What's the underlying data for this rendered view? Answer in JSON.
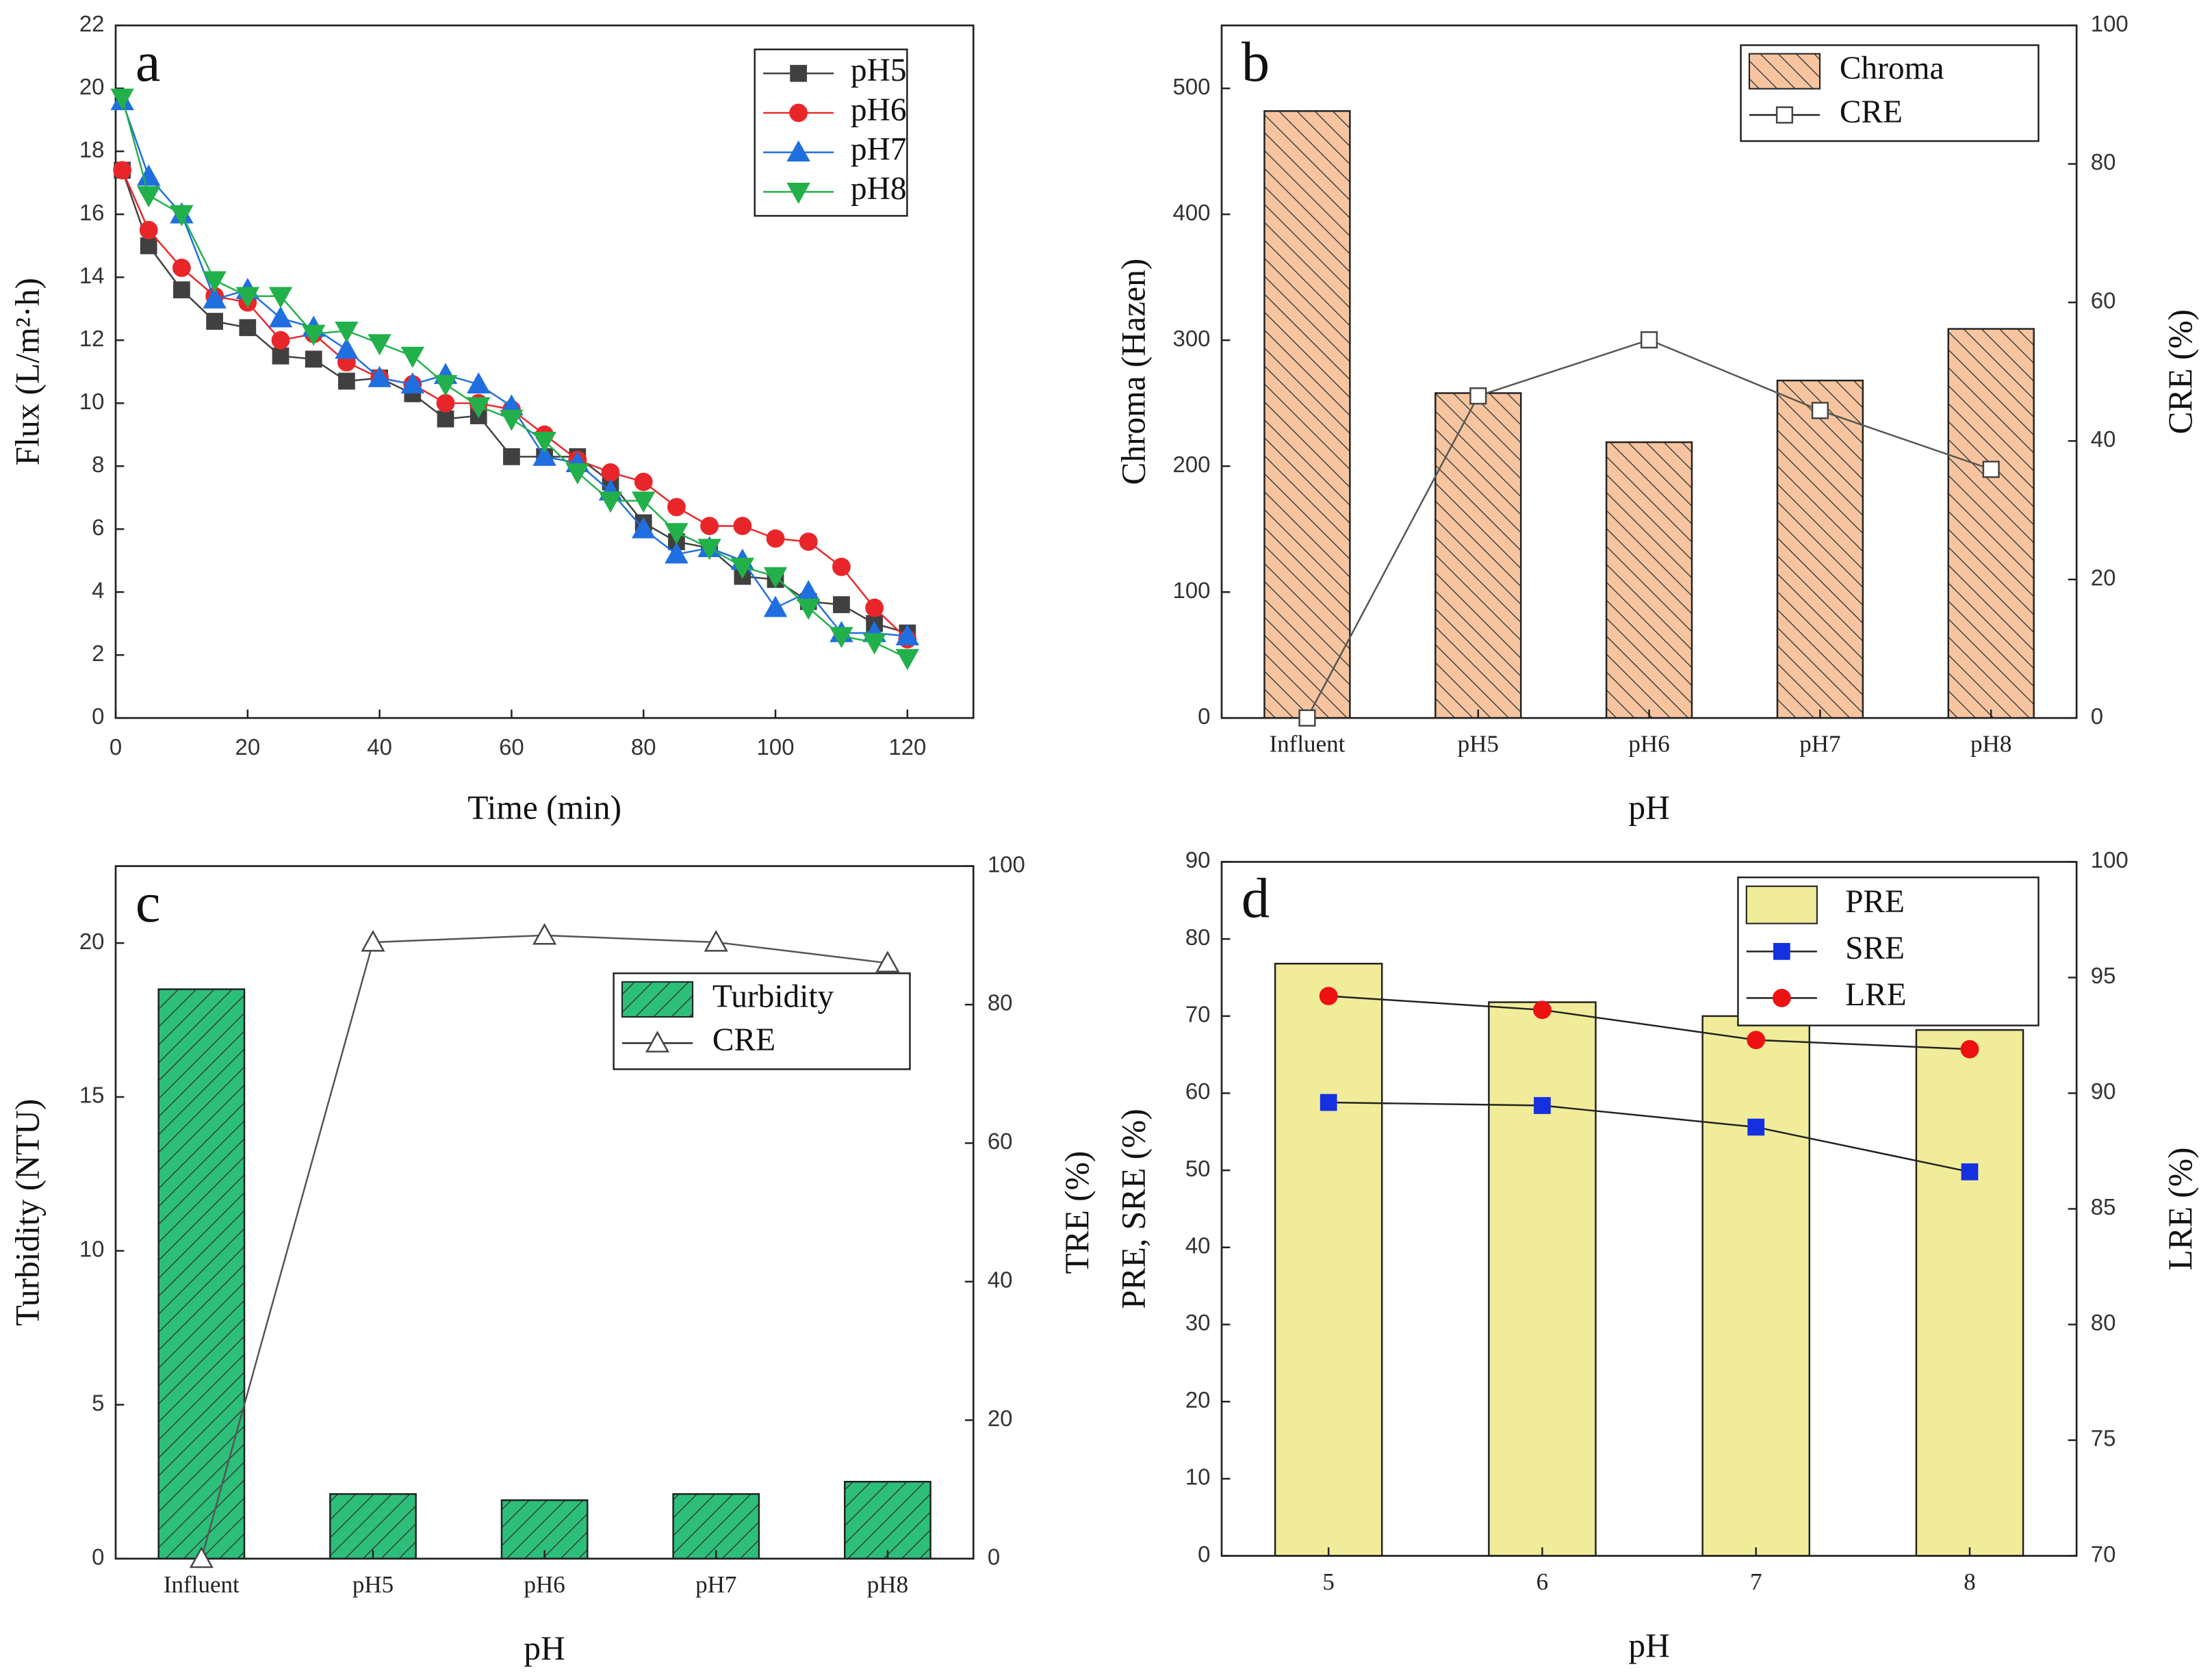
{
  "chart_data": [
    {
      "type": "line",
      "label": "a",
      "xlabel": "Time (min)",
      "ylabel": "Flux (L/m²·h)",
      "x": [
        1,
        5,
        10,
        15,
        20,
        25,
        30,
        35,
        40,
        45,
        50,
        55,
        60,
        65,
        70,
        75,
        80,
        85,
        90,
        95,
        100,
        105,
        110,
        115,
        120
      ],
      "xlim": [
        0,
        130
      ],
      "xticks": [
        0,
        20,
        40,
        60,
        80,
        100,
        120
      ],
      "ylim": [
        0,
        22
      ],
      "yticks": [
        0,
        2,
        4,
        6,
        8,
        10,
        12,
        14,
        16,
        18,
        20,
        22
      ],
      "legend": "upper right",
      "series": [
        {
          "name": "pH5",
          "color": "#404040",
          "marker": "square",
          "values": [
            17.4,
            15.0,
            13.6,
            12.6,
            12.4,
            11.5,
            11.4,
            10.7,
            10.8,
            10.3,
            9.5,
            9.6,
            8.3,
            8.3,
            8.3,
            7.5,
            6.2,
            5.6,
            5.4,
            4.5,
            4.4,
            3.7,
            3.6,
            3.0,
            2.7
          ]
        },
        {
          "name": "pH6",
          "color": "#e8262a",
          "marker": "circle",
          "values": [
            17.4,
            15.5,
            14.3,
            13.4,
            13.2,
            12.0,
            12.2,
            11.3,
            10.8,
            10.6,
            10.0,
            10.0,
            9.8,
            9.0,
            8.2,
            7.8,
            7.5,
            6.7,
            6.1,
            6.1,
            5.7,
            5.6,
            4.8,
            3.5,
            2.5
          ]
        },
        {
          "name": "pH7",
          "color": "#1f6fe0",
          "marker": "triangle-up",
          "values": [
            19.6,
            17.2,
            16.0,
            13.3,
            13.6,
            12.7,
            12.4,
            11.7,
            10.8,
            10.6,
            10.9,
            10.6,
            9.9,
            8.3,
            8.1,
            7.2,
            6.0,
            5.2,
            5.4,
            5.0,
            3.5,
            4.0,
            2.7,
            2.7,
            2.6
          ]
        },
        {
          "name": "pH8",
          "color": "#22b04a",
          "marker": "triangle-down",
          "values": [
            19.7,
            16.6,
            16.0,
            13.9,
            13.4,
            13.4,
            12.2,
            12.3,
            11.9,
            11.5,
            10.6,
            9.9,
            9.5,
            8.8,
            7.8,
            6.9,
            6.9,
            5.9,
            5.4,
            4.8,
            4.5,
            3.5,
            2.6,
            2.4,
            1.9
          ]
        }
      ]
    },
    {
      "type": "bar_line",
      "label": "b",
      "xlabel": "pH",
      "ylabel": "Chroma (Hazen)",
      "y2label": "CRE (%)",
      "categories": [
        "Influent",
        "pH5",
        "pH6",
        "pH7",
        "pH8"
      ],
      "ylim": [
        0,
        550
      ],
      "yticks": [
        0,
        100,
        200,
        300,
        400,
        500
      ],
      "y2lim": [
        0,
        100
      ],
      "y2ticks": [
        0,
        20,
        40,
        60,
        80,
        100
      ],
      "legend": "upper right",
      "series": [
        {
          "name": "Chroma",
          "type": "bar",
          "color": "#f6c59f",
          "hatch": "backslash",
          "values": [
            482,
            258,
            219,
            268,
            309
          ]
        },
        {
          "name": "CRE",
          "type": "line",
          "axis": "y2",
          "color": "#555555",
          "marker": "square",
          "hollow": true,
          "values": [
            0,
            46.5,
            54.6,
            44.4,
            35.9
          ]
        }
      ]
    },
    {
      "type": "bar_line",
      "label": "c",
      "xlabel": "pH",
      "ylabel": "Turbidity (NTU)",
      "y2label": "TRE (%)",
      "categories": [
        "Influent",
        "pH5",
        "pH6",
        "pH7",
        "pH8"
      ],
      "ylim": [
        0,
        22.5
      ],
      "yticks": [
        0,
        5,
        10,
        15,
        20
      ],
      "y2lim": [
        0,
        100
      ],
      "y2ticks": [
        0,
        20,
        40,
        60,
        80,
        100
      ],
      "legend": "center right",
      "series": [
        {
          "name": "Turbidity",
          "type": "bar",
          "color": "#2dbf7a",
          "hatch": "slash",
          "values": [
            18.5,
            2.1,
            1.9,
            2.1,
            2.5
          ]
        },
        {
          "name": "CRE",
          "type": "line",
          "axis": "y2",
          "color": "#555555",
          "marker": "triangle-up",
          "hollow": true,
          "values": [
            0,
            89,
            90,
            89,
            86
          ]
        }
      ]
    },
    {
      "type": "bar_line",
      "label": "d",
      "xlabel": "pH",
      "ylabel": "PRE, SRE (%)",
      "y2label": "LRE (%)",
      "categories": [
        "5",
        "6",
        "7",
        "8"
      ],
      "ylim": [
        0,
        90
      ],
      "yticks": [
        0,
        10,
        20,
        30,
        40,
        50,
        60,
        70,
        80,
        90
      ],
      "y2lim": [
        70,
        100
      ],
      "y2ticks": [
        70,
        75,
        80,
        85,
        90,
        95,
        100
      ],
      "legend": "upper right",
      "series": [
        {
          "name": "PRE",
          "type": "bar",
          "color": "#f0ec9a",
          "values": [
            76.8,
            71.8,
            70.0,
            68.2
          ]
        },
        {
          "name": "SRE",
          "type": "line",
          "color": "#1530e0",
          "marker": "square",
          "values": [
            58.8,
            58.4,
            55.6,
            49.8
          ]
        },
        {
          "name": "LRE",
          "type": "line",
          "axis": "y2",
          "color": "#ee1111",
          "marker": "circle",
          "values": [
            94.2,
            93.6,
            92.3,
            91.9
          ]
        }
      ]
    }
  ]
}
